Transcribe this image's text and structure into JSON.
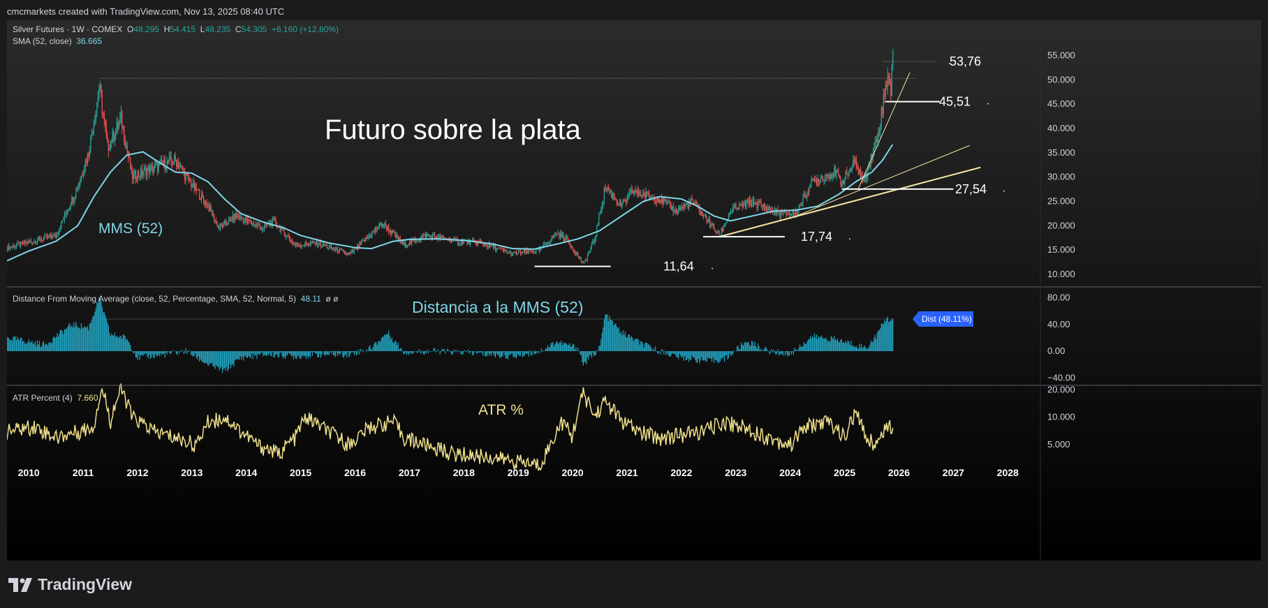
{
  "header": {
    "text": "cmcmarkets created with TradingView.com, Nov 13, 2025 08:40 UTC"
  },
  "legend_main": {
    "symbol": "Silver Futures · 1W · COMEX",
    "o_label": "O",
    "o_value": "48.295",
    "h_label": "H",
    "h_value": "54.415",
    "l_label": "L",
    "l_value": "48.235",
    "c_label": "C",
    "c_value": "54.305",
    "change": "+6.160 (+12.80%)",
    "sma_label": "SMA (52, close)",
    "sma_value": "36.665"
  },
  "legend_dist": {
    "label": "Distance From Moving Average (close, 52, Percentage, SMA, 52, Normal, 5)",
    "value": "48.11",
    "extra": "ø  ø"
  },
  "legend_atr": {
    "label": "ATR Percent (4)",
    "value": "7.660"
  },
  "annotations": {
    "main_title": "Futuro sobre la plata",
    "mms_label": "MMS (52)",
    "dist_title": "Distancia a la MMS (52)",
    "atr_title": "ATR %",
    "dist_badge": "Dist (48.11%)"
  },
  "footer": {
    "logo_text": "TradingView"
  },
  "colors": {
    "up": "#26a69a",
    "down": "#ef5350",
    "sma": "#7fd6e8",
    "atr": "#f0e08c",
    "hist": "#22a7c4",
    "trend": "#f5e6a3",
    "badge": "#2962ff"
  },
  "chart_data": [
    {
      "type": "candlestick",
      "title": "Silver Futures · 1W · COMEX",
      "x_labels": [
        "2010",
        "2011",
        "2012",
        "2013",
        "2014",
        "2015",
        "2016",
        "2017",
        "2018",
        "2019",
        "2020",
        "2021",
        "2022",
        "2023",
        "2024",
        "2025",
        "2026",
        "2027",
        "2028"
      ],
      "xlim": [
        2009.6,
        2028.6
      ],
      "y_ticks": [
        "55.000",
        "50.000",
        "45.000",
        "40.000",
        "35.000",
        "30.000",
        "25.000",
        "20.000",
        "15.000",
        "10.000"
      ],
      "ylim": [
        8,
        56.5
      ],
      "price_path": [
        [
          2009.6,
          15.5
        ],
        [
          2010.5,
          18
        ],
        [
          2010.9,
          28
        ],
        [
          2011.1,
          35
        ],
        [
          2011.3,
          48.5
        ],
        [
          2011.45,
          36
        ],
        [
          2011.7,
          42
        ],
        [
          2011.9,
          30
        ],
        [
          2012.3,
          32
        ],
        [
          2012.7,
          33.5
        ],
        [
          2012.9,
          30
        ],
        [
          2013.3,
          24
        ],
        [
          2013.5,
          19.5
        ],
        [
          2013.8,
          22
        ],
        [
          2014.3,
          19.5
        ],
        [
          2014.5,
          21
        ],
        [
          2014.9,
          16
        ],
        [
          2015.3,
          16.5
        ],
        [
          2015.9,
          14
        ],
        [
          2016.5,
          20.5
        ],
        [
          2016.9,
          16
        ],
        [
          2017.3,
          18
        ],
        [
          2017.9,
          16.8
        ],
        [
          2018.3,
          16.5
        ],
        [
          2018.9,
          14.2
        ],
        [
          2019.4,
          15
        ],
        [
          2019.7,
          18.5
        ],
        [
          2019.9,
          17.2
        ],
        [
          2020.2,
          12
        ],
        [
          2020.4,
          17
        ],
        [
          2020.6,
          28
        ],
        [
          2020.9,
          24
        ],
        [
          2021.1,
          27
        ],
        [
          2021.6,
          25.5
        ],
        [
          2021.9,
          23
        ],
        [
          2022.2,
          25
        ],
        [
          2022.7,
          18
        ],
        [
          2022.9,
          23
        ],
        [
          2023.3,
          25
        ],
        [
          2023.8,
          22.5
        ],
        [
          2024.1,
          22.5
        ],
        [
          2024.4,
          29
        ],
        [
          2024.8,
          31
        ],
        [
          2024.95,
          29
        ],
        [
          2025.2,
          33
        ],
        [
          2025.35,
          29
        ],
        [
          2025.6,
          38
        ],
        [
          2025.75,
          48
        ],
        [
          2025.8,
          52
        ],
        [
          2025.85,
          47.5
        ],
        [
          2025.88,
          54.3
        ]
      ],
      "sma_path": [
        [
          2009.6,
          12.8
        ],
        [
          2010,
          14.8
        ],
        [
          2010.5,
          16.8
        ],
        [
          2010.9,
          20
        ],
        [
          2011.2,
          26
        ],
        [
          2011.5,
          31
        ],
        [
          2011.8,
          34.5
        ],
        [
          2012.1,
          35.2
        ],
        [
          2012.4,
          33
        ],
        [
          2012.7,
          31
        ],
        [
          2013,
          30.8
        ],
        [
          2013.3,
          29
        ],
        [
          2013.6,
          25.5
        ],
        [
          2013.9,
          22.5
        ],
        [
          2014.3,
          20.8
        ],
        [
          2014.7,
          19.5
        ],
        [
          2015,
          18
        ],
        [
          2015.5,
          16.5
        ],
        [
          2016,
          15.5
        ],
        [
          2016.3,
          15.3
        ],
        [
          2016.7,
          16.8
        ],
        [
          2017,
          17.2
        ],
        [
          2017.5,
          17.3
        ],
        [
          2018,
          17
        ],
        [
          2018.5,
          16.3
        ],
        [
          2018.9,
          15.3
        ],
        [
          2019.3,
          15.2
        ],
        [
          2019.7,
          16.2
        ],
        [
          2020.1,
          17.3
        ],
        [
          2020.5,
          19
        ],
        [
          2020.9,
          22
        ],
        [
          2021.3,
          25
        ],
        [
          2021.6,
          26
        ],
        [
          2022,
          25.5
        ],
        [
          2022.3,
          24
        ],
        [
          2022.6,
          22
        ],
        [
          2022.9,
          21
        ],
        [
          2023.3,
          22
        ],
        [
          2023.7,
          23
        ],
        [
          2024.1,
          23.2
        ],
        [
          2024.5,
          24
        ],
        [
          2024.9,
          26.5
        ],
        [
          2025.2,
          29
        ],
        [
          2025.5,
          31
        ],
        [
          2025.7,
          33.5
        ],
        [
          2025.88,
          36.665
        ]
      ],
      "annotations": [
        {
          "label": "53,76",
          "value": 53.76
        },
        {
          "label": "45,51",
          "value": 45.51
        },
        {
          "label": "27,54",
          "value": 27.54
        },
        {
          "label": "17,74",
          "value": 17.74
        },
        {
          "label": "11,64",
          "value": 11.64
        }
      ],
      "resistance_level": 50.3,
      "trendlines": [
        {
          "from": [
            2022.7,
            17.74
          ],
          "to": [
            2027.5,
            32
          ]
        },
        {
          "from": [
            2024.0,
            21.5
          ],
          "to": [
            2027.3,
            36.5
          ]
        },
        {
          "from": [
            2025.25,
            27.54
          ],
          "to": [
            2026.2,
            51.5
          ]
        }
      ]
    },
    {
      "type": "histogram",
      "title": "Distance From Moving Average (close, 52, Percentage, SMA, 52, Normal, 5)",
      "y_ticks": [
        "80.00",
        "40.00",
        "0.00",
        "−40.00"
      ],
      "ylim": [
        -48,
        92
      ],
      "last_value": 48.11,
      "reference_level": 48.11,
      "dist_path": [
        [
          2009.6,
          20
        ],
        [
          2010.3,
          10
        ],
        [
          2010.8,
          40
        ],
        [
          2011.1,
          35
        ],
        [
          2011.3,
          80
        ],
        [
          2011.5,
          25
        ],
        [
          2011.8,
          20
        ],
        [
          2012,
          -10
        ],
        [
          2012.5,
          -5
        ],
        [
          2012.9,
          0
        ],
        [
          2013.3,
          -20
        ],
        [
          2013.6,
          -30
        ],
        [
          2013.9,
          -10
        ],
        [
          2014.4,
          -5
        ],
        [
          2014.9,
          -8
        ],
        [
          2015.4,
          -5
        ],
        [
          2015.9,
          -5
        ],
        [
          2016.3,
          5
        ],
        [
          2016.6,
          28
        ],
        [
          2016.9,
          -2
        ],
        [
          2017.4,
          0
        ],
        [
          2018,
          -2
        ],
        [
          2018.5,
          -5
        ],
        [
          2018.9,
          -8
        ],
        [
          2019.4,
          0
        ],
        [
          2019.7,
          14
        ],
        [
          2020.1,
          5
        ],
        [
          2020.2,
          -20
        ],
        [
          2020.5,
          5
        ],
        [
          2020.6,
          55
        ],
        [
          2020.9,
          28
        ],
        [
          2021.3,
          10
        ],
        [
          2021.6,
          0
        ],
        [
          2022,
          -10
        ],
        [
          2022.5,
          -15
        ],
        [
          2022.8,
          -12
        ],
        [
          2023.2,
          15
        ],
        [
          2023.6,
          0
        ],
        [
          2024,
          -5
        ],
        [
          2024.4,
          22
        ],
        [
          2024.8,
          18
        ],
        [
          2025.1,
          12
        ],
        [
          2025.4,
          5
        ],
        [
          2025.6,
          25
        ],
        [
          2025.75,
          48
        ],
        [
          2025.88,
          48.11
        ]
      ]
    },
    {
      "type": "line",
      "title": "ATR Percent (4)",
      "y_ticks": [
        "20.000",
        "10.000",
        "5.000"
      ],
      "log_scale": true,
      "ylim": [
        2,
        20.5
      ],
      "last_value": 7.66,
      "atr_path": [
        [
          2009.6,
          7
        ],
        [
          2010.1,
          8
        ],
        [
          2010.5,
          6
        ],
        [
          2010.9,
          7
        ],
        [
          2011.2,
          8
        ],
        [
          2011.35,
          20
        ],
        [
          2011.5,
          9
        ],
        [
          2011.7,
          20
        ],
        [
          2011.9,
          10
        ],
        [
          2012.3,
          7
        ],
        [
          2012.7,
          6
        ],
        [
          2013.1,
          5
        ],
        [
          2013.3,
          9
        ],
        [
          2013.6,
          10
        ],
        [
          2013.9,
          7
        ],
        [
          2014.2,
          5
        ],
        [
          2014.6,
          4
        ],
        [
          2014.9,
          6
        ],
        [
          2015.1,
          10
        ],
        [
          2015.5,
          7
        ],
        [
          2015.9,
          5
        ],
        [
          2016.3,
          8
        ],
        [
          2016.7,
          9
        ],
        [
          2016.9,
          6
        ],
        [
          2017.3,
          5
        ],
        [
          2017.8,
          4
        ],
        [
          2018.3,
          3.8
        ],
        [
          2018.7,
          3.5
        ],
        [
          2019.1,
          3.2
        ],
        [
          2019.4,
          3
        ],
        [
          2019.6,
          5
        ],
        [
          2019.8,
          9
        ],
        [
          2020,
          6
        ],
        [
          2020.2,
          18
        ],
        [
          2020.4,
          10
        ],
        [
          2020.6,
          15
        ],
        [
          2020.9,
          9
        ],
        [
          2021.2,
          7
        ],
        [
          2021.6,
          6
        ],
        [
          2022,
          6.5
        ],
        [
          2022.4,
          7
        ],
        [
          2022.8,
          9
        ],
        [
          2023.1,
          8
        ],
        [
          2023.6,
          6
        ],
        [
          2024,
          5
        ],
        [
          2024.3,
          8
        ],
        [
          2024.7,
          9
        ],
        [
          2025,
          6
        ],
        [
          2025.2,
          11
        ],
        [
          2025.4,
          6
        ],
        [
          2025.6,
          5
        ],
        [
          2025.75,
          8
        ],
        [
          2025.88,
          7.66
        ]
      ]
    }
  ]
}
